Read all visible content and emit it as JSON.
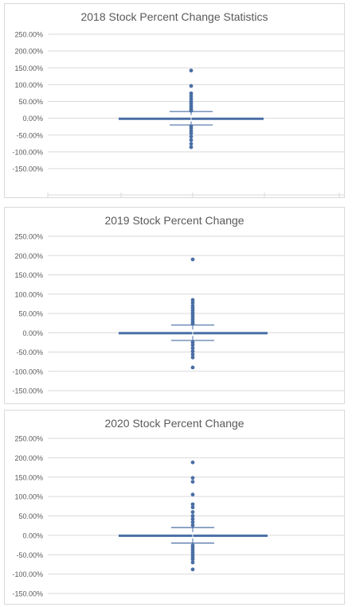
{
  "chart_data": [
    {
      "type": "box",
      "title": "2018 Stock Percent Change Statistics",
      "y_tick_labels": [
        "250.00%",
        "200.00%",
        "150.00%",
        "100.00%",
        "50.00%",
        "0.00%",
        "-50.00%",
        "-100.00%",
        "-150.00%"
      ],
      "ylim": [
        -150,
        250
      ],
      "grid": true,
      "box": {
        "q1": -2,
        "median": 0,
        "q3": 2,
        "whisker_low": -20,
        "whisker_high": 20
      },
      "outliers": [
        142,
        96,
        74,
        66,
        58,
        50,
        44,
        38,
        32,
        26,
        22,
        -24,
        -30,
        -38,
        -45,
        -55,
        -65,
        -76,
        -86
      ],
      "colors": {
        "series": "#4a6fa5",
        "grid": "#d9d9d9",
        "text": "#595959"
      }
    },
    {
      "type": "box",
      "title": "2019 Stock Percent Change",
      "y_tick_labels": [
        "250.00%",
        "200.00%",
        "150.00%",
        "100.00%",
        "50.00%",
        "0.00%",
        "-50.00%",
        "-100.00%",
        "-150.00%"
      ],
      "ylim": [
        -150,
        250
      ],
      "grid": true,
      "box": {
        "q1": -2,
        "median": 0,
        "q3": 2,
        "whisker_low": -20,
        "whisker_high": 20
      },
      "outliers": [
        190,
        85,
        78,
        70,
        64,
        58,
        52,
        46,
        40,
        34,
        28,
        23,
        -25,
        -32,
        -40,
        -48,
        -56,
        -64,
        -90
      ],
      "colors": {
        "series": "#4a6fa5",
        "grid": "#d9d9d9",
        "text": "#595959"
      }
    },
    {
      "type": "box",
      "title": "2020 Stock Percent Change",
      "y_tick_labels": [
        "250.00%",
        "200.00%",
        "150.00%",
        "100.00%",
        "50.00%",
        "0.00%",
        "-50.00%",
        "-100.00%",
        "-150.00%"
      ],
      "ylim": [
        -150,
        250
      ],
      "grid": true,
      "box": {
        "q1": -2,
        "median": 0,
        "q3": 2,
        "whisker_low": -20,
        "whisker_high": 20
      },
      "outliers": [
        188,
        148,
        138,
        105,
        80,
        72,
        60,
        50,
        42,
        34,
        26,
        -26,
        -32,
        -38,
        -44,
        -50,
        -56,
        -62,
        -70,
        -88
      ],
      "colors": {
        "series": "#4a6fa5",
        "grid": "#d9d9d9",
        "text": "#595959"
      }
    }
  ]
}
